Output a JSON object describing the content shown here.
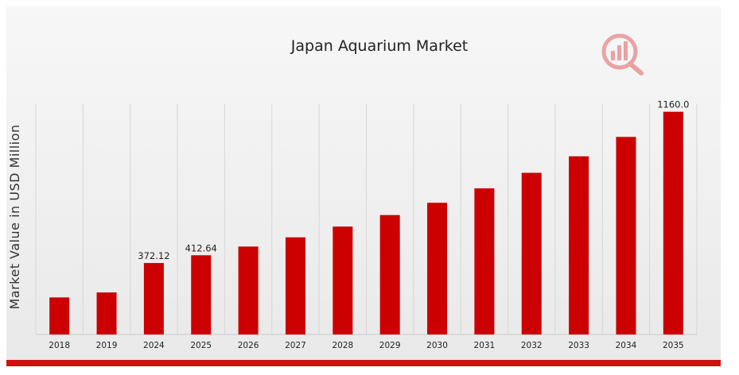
{
  "chart_data": {
    "type": "bar",
    "title": "Japan Aquarium Market",
    "ylabel": "Market Value in USD Million",
    "xlabel": "",
    "categories": [
      "2018",
      "2019",
      "2024",
      "2025",
      "2026",
      "2027",
      "2028",
      "2029",
      "2030",
      "2031",
      "2032",
      "2033",
      "2034",
      "2035"
    ],
    "values": [
      193,
      219,
      372.12,
      412.64,
      458,
      506,
      562,
      622,
      686,
      761,
      842,
      928,
      1029,
      1160.0
    ],
    "data_labels": {
      "2024": "372.12",
      "2025": "412.64",
      "2035": "1160.0"
    },
    "ylim": [
      0,
      1200
    ],
    "grid": "vertical",
    "legend": "none",
    "bar_color": "#cc0000",
    "watermark_color": "#e06060"
  }
}
